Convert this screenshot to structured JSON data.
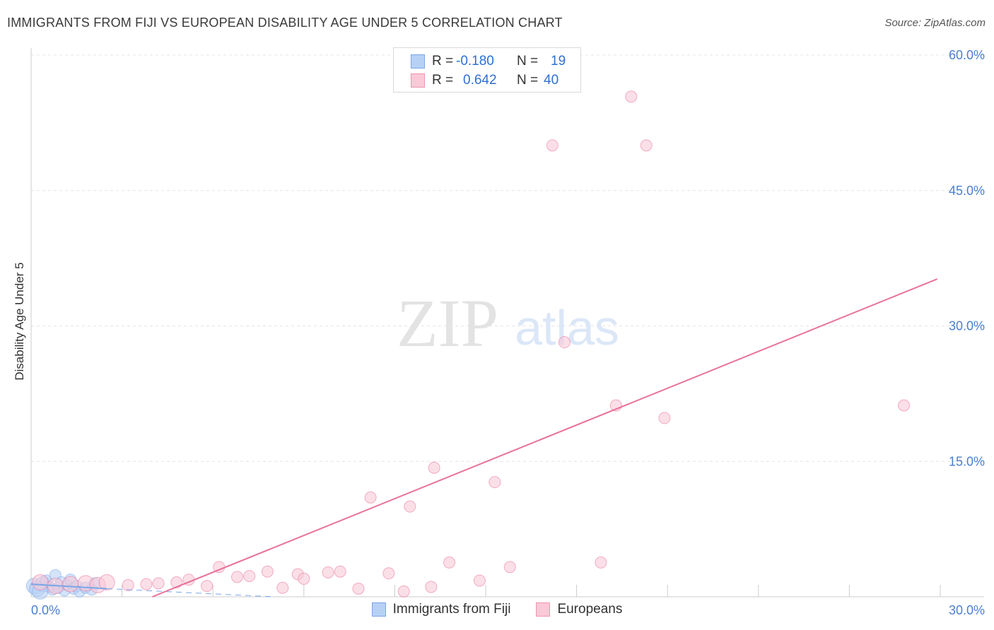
{
  "header": {
    "title": "IMMIGRANTS FROM FIJI VS EUROPEAN DISABILITY AGE UNDER 5 CORRELATION CHART",
    "source": "Source: ZipAtlas.com"
  },
  "watermark": {
    "zip": "ZIP",
    "atlas": "atlas"
  },
  "legend": {
    "rows": [
      {
        "r_label": "R =",
        "r_value": "-0.180",
        "n_label": "N =",
        "n_value": "19",
        "fill": "#b7d1f5",
        "stroke": "#7aa6e6"
      },
      {
        "r_label": "R =",
        "r_value": "0.642",
        "n_label": "N =",
        "n_value": "40",
        "fill": "#f9c9d7",
        "stroke": "#ef94b1"
      }
    ]
  },
  "bottom_legend": [
    {
      "label": "Immigrants from Fiji",
      "fill": "#b7d1f5",
      "stroke": "#7aa6e6"
    },
    {
      "label": "Europeans",
      "fill": "#f9c9d7",
      "stroke": "#ef94b1"
    }
  ],
  "chart_data": {
    "type": "scatter",
    "title": "IMMIGRANTS FROM FIJI VS EUROPEAN DISABILITY AGE UNDER 5 CORRELATION CHART",
    "xlabel": "",
    "ylabel": "Disability Age Under 5",
    "xlim": [
      0,
      30
    ],
    "ylim": [
      0,
      60
    ],
    "x_tick_labels": [
      "0.0%",
      "30.0%"
    ],
    "y_tick_labels": [
      "15.0%",
      "30.0%",
      "45.0%",
      "60.0%"
    ],
    "y_tick_values": [
      15,
      30,
      45,
      60
    ],
    "grid": true,
    "series": [
      {
        "name": "Immigrants from Fiji",
        "color": "#7aa6e6",
        "fill": "#b7d1f5",
        "points": [
          [
            0.1,
            1.2
          ],
          [
            0.2,
            0.9
          ],
          [
            0.4,
            1.4
          ],
          [
            0.5,
            1.8
          ],
          [
            0.6,
            1.1
          ],
          [
            0.7,
            0.8
          ],
          [
            0.8,
            2.4
          ],
          [
            0.9,
            1.0
          ],
          [
            1.0,
            1.6
          ],
          [
            1.1,
            0.7
          ],
          [
            1.2,
            1.3
          ],
          [
            1.3,
            1.9
          ],
          [
            1.4,
            0.9
          ],
          [
            1.5,
            1.2
          ],
          [
            1.6,
            0.6
          ],
          [
            1.8,
            1.0
          ],
          [
            2.0,
            0.8
          ],
          [
            2.1,
            1.5
          ],
          [
            0.3,
            0.6
          ]
        ],
        "trend": {
          "x": [
            0,
            2.5
          ],
          "y": [
            1.4,
            0.9
          ],
          "dash_ext": {
            "x": [
              2.5,
              8.0
            ],
            "y": [
              0.9,
              0.0
            ]
          }
        }
      },
      {
        "name": "Europeans",
        "color": "#e8729c",
        "fill": "#f9c9d7",
        "points": [
          [
            0.3,
            1.6
          ],
          [
            0.8,
            1.2
          ],
          [
            1.3,
            1.4
          ],
          [
            1.8,
            1.5
          ],
          [
            2.2,
            1.3
          ],
          [
            2.5,
            1.6
          ],
          [
            3.2,
            1.3
          ],
          [
            3.8,
            1.4
          ],
          [
            4.2,
            1.5
          ],
          [
            4.8,
            1.6
          ],
          [
            5.2,
            1.9
          ],
          [
            5.8,
            1.2
          ],
          [
            6.2,
            3.3
          ],
          [
            6.8,
            2.2
          ],
          [
            7.2,
            2.3
          ],
          [
            7.8,
            2.8
          ],
          [
            8.3,
            1.0
          ],
          [
            8.8,
            2.5
          ],
          [
            9.0,
            2.0
          ],
          [
            9.8,
            2.7
          ],
          [
            10.2,
            2.8
          ],
          [
            10.8,
            0.9
          ],
          [
            11.2,
            11.0
          ],
          [
            11.8,
            2.6
          ],
          [
            12.3,
            0.6
          ],
          [
            12.5,
            10.0
          ],
          [
            13.2,
            1.1
          ],
          [
            13.3,
            14.3
          ],
          [
            13.8,
            3.8
          ],
          [
            14.8,
            1.8
          ],
          [
            15.3,
            12.7
          ],
          [
            15.8,
            3.3
          ],
          [
            17.2,
            50.0
          ],
          [
            17.6,
            28.2
          ],
          [
            18.8,
            3.8
          ],
          [
            19.3,
            21.2
          ],
          [
            19.8,
            55.4
          ],
          [
            20.3,
            50.0
          ],
          [
            20.9,
            19.8
          ],
          [
            28.8,
            21.2
          ]
        ],
        "trend": {
          "x": [
            4.0,
            29.9
          ],
          "y": [
            0.0,
            35.2
          ]
        }
      }
    ]
  }
}
